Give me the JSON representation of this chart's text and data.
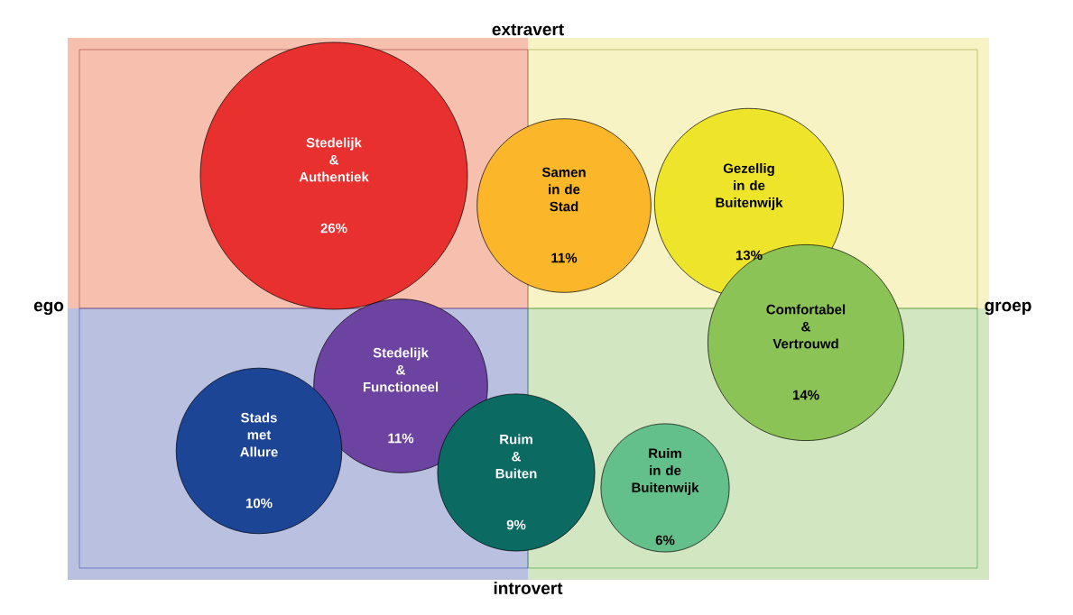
{
  "chart_data": {
    "type": "other",
    "categories": [
      "Stedelijk\n&\nAuthentiek",
      "Samen\nin de\nStad",
      "Gezellig\nin de\nBuitenwijk",
      "Comfortabel\n&\nVertrouwd",
      "Stedelijk\n&\nFunctioneel",
      "Stads\nmet\nAllure",
      "Ruim\n&\nBuiten",
      "Ruim\nin de\nBuitenwijk"
    ],
    "values": [
      26,
      11,
      13,
      14,
      11,
      10,
      9,
      6
    ],
    "value_labels": [
      "26%",
      "11%",
      "13%",
      "14%",
      "11%",
      "10%",
      "9%",
      "6%"
    ],
    "colors": [
      "#e8302e",
      "#fbb62a",
      "#eee52a",
      "#8cc356",
      "#6c43a0",
      "#1d4596",
      "#0b6a62",
      "#64c08a"
    ],
    "annotations": [
      "ego",
      "groep",
      "extravert",
      "introvert"
    ]
  }
}
